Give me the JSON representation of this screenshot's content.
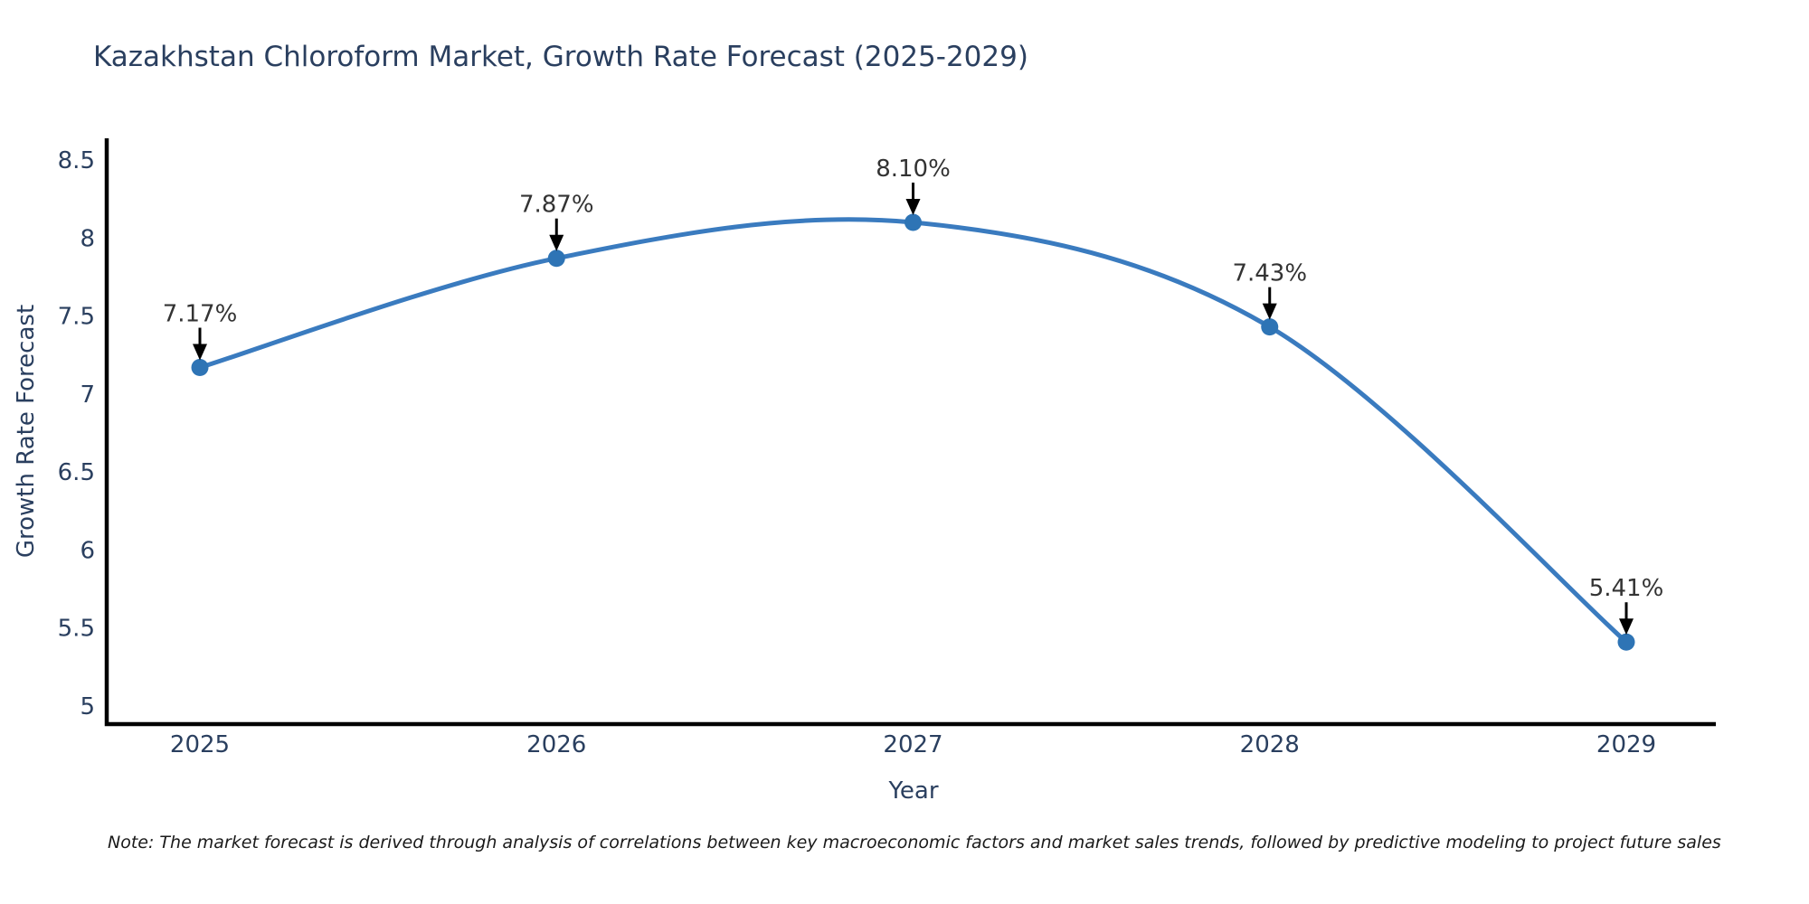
{
  "chart": {
    "title": "Kazakhstan Chloroform Market, Growth Rate Forecast (2025-2029)",
    "ylabel": "Growth Rate Forecast",
    "xlabel": "Year",
    "note": "Note: The market forecast is derived through analysis of correlations between key macroeconomic factors and market sales trends, followed by predictive modeling to project future sales"
  },
  "chart_data": {
    "type": "line",
    "line_shape": "spline",
    "categories": [
      "2025",
      "2026",
      "2027",
      "2028",
      "2029"
    ],
    "values": [
      7.17,
      7.87,
      8.1,
      7.43,
      5.41
    ],
    "point_labels": [
      "7.17%",
      "7.87%",
      "8.10%",
      "7.43%",
      "5.41%"
    ],
    "title": "Kazakhstan Chloroform Market, Growth Rate Forecast (2025-2029)",
    "xlabel": "Year",
    "ylabel": "Growth Rate Forecast",
    "ylim": [
      5,
      8.5
    ],
    "ytick_labels": [
      "5",
      "5.5",
      "6",
      "6.5",
      "7",
      "7.5",
      "8",
      "8.5"
    ],
    "grid": false,
    "legend": "none",
    "annotations_have_arrows": true,
    "colors": {
      "line": "#3a7bbf",
      "marker": "#2e74b5",
      "axis": "#000000",
      "title_text": "#2a3f5f",
      "tick_text": "#2a3f5f",
      "annotation_text": "#333333",
      "arrow": "#000000",
      "background": "#ffffff"
    }
  }
}
